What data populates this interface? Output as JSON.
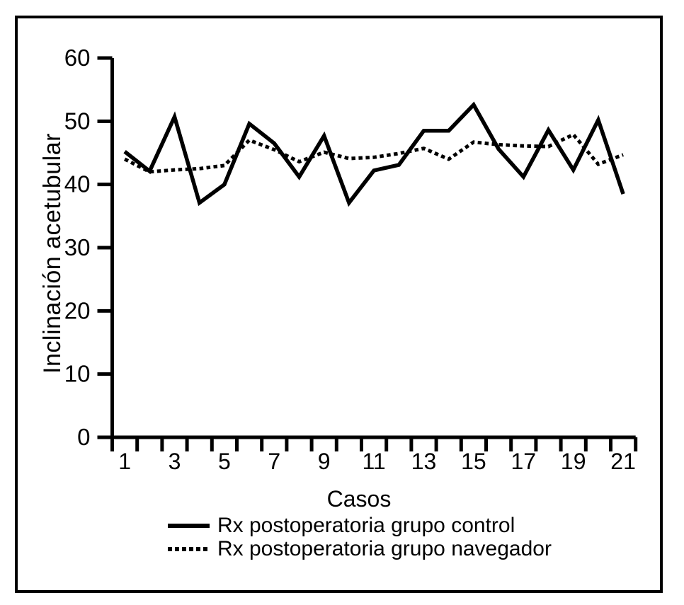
{
  "figure": {
    "background_color": "#ffffff",
    "border_color": "#000000",
    "line_color": "#000000"
  },
  "chart_data": {
    "type": "line",
    "title": "",
    "xlabel": "Casos",
    "ylabel": "Inclinación acetubular",
    "x": [
      1,
      2,
      3,
      4,
      5,
      6,
      7,
      8,
      9,
      10,
      11,
      12,
      13,
      14,
      15,
      16,
      17,
      18,
      19,
      20,
      21
    ],
    "xtick_labels": [
      "1",
      "3",
      "5",
      "7",
      "9",
      "11",
      "13",
      "15",
      "17",
      "19",
      "21"
    ],
    "yticks": [
      0,
      10,
      20,
      30,
      40,
      50,
      60
    ],
    "ylim": [
      0,
      60
    ],
    "grid": false,
    "legend_position": "bottom",
    "series": [
      {
        "name": "Rx postoperatoria grupo control",
        "line_style": "solid",
        "color": "#000000",
        "values": [
          45.2,
          42.1,
          50.7,
          37.1,
          40.0,
          49.6,
          46.5,
          41.2,
          47.7,
          37.1,
          42.2,
          43.1,
          48.5,
          48.5,
          52.6,
          45.6,
          41.2,
          48.6,
          42.3,
          50.2,
          38.5
        ]
      },
      {
        "name": "Rx postoperatoria grupo navegador",
        "line_style": "dotted",
        "color": "#000000",
        "values": [
          44.0,
          42.0,
          42.3,
          42.5,
          43.0,
          47.0,
          45.5,
          43.6,
          45.1,
          44.1,
          44.3,
          44.9,
          45.7,
          44.0,
          46.7,
          46.3,
          46.1,
          46.0,
          47.9,
          43.2,
          44.7
        ]
      }
    ]
  }
}
